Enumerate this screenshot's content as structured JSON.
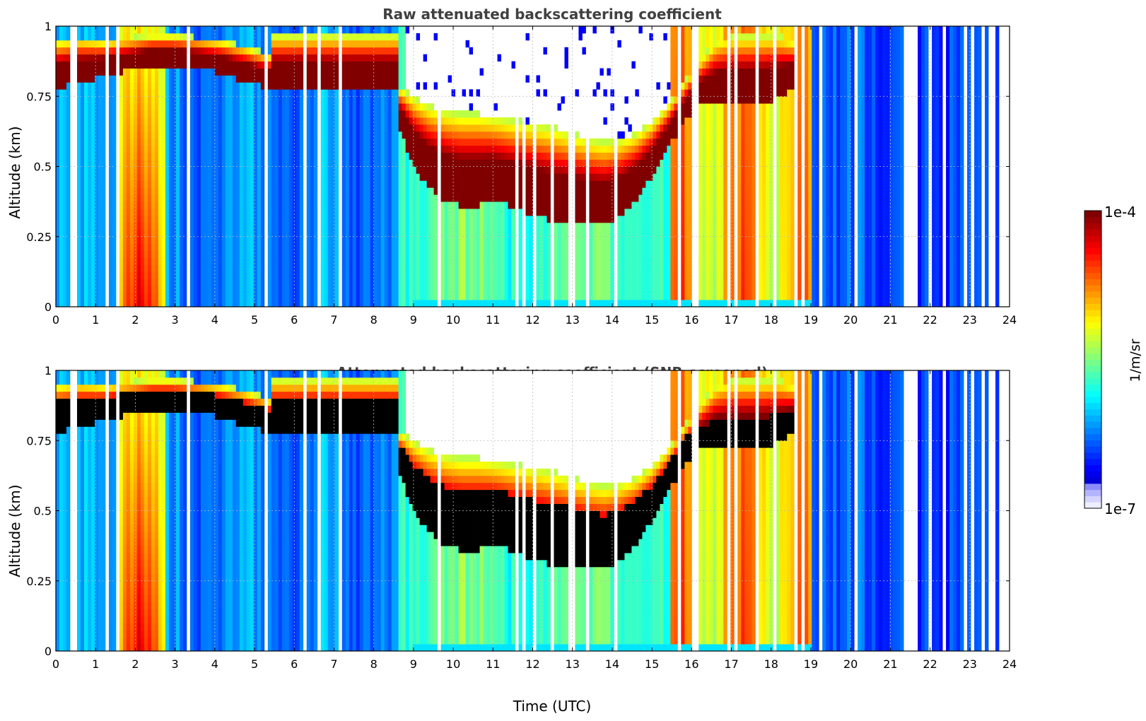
{
  "chart_data": [
    {
      "type": "heatmap",
      "title": "Raw attenuated backscattering coefficient",
      "xlabel": "",
      "ylabel": "Altitude (km)",
      "xlim": [
        0,
        24
      ],
      "ylim": [
        0,
        1
      ],
      "xticks": [
        "0",
        "1",
        "2",
        "3",
        "4",
        "5",
        "6",
        "7",
        "8",
        "9",
        "10",
        "11",
        "12",
        "13",
        "14",
        "15",
        "16",
        "17",
        "18",
        "19",
        "20",
        "21",
        "22",
        "23",
        "24"
      ],
      "yticks": [
        "0",
        "0.25",
        "0.5",
        "0.75",
        "1"
      ],
      "grid": true,
      "screened": false,
      "cloud_top_km": [
        0.95,
        0.96,
        0.95,
        0.96,
        0.97,
        0.97,
        0.96,
        0.95,
        0.93,
        0.9,
        0.78,
        0.75,
        0.72,
        0.7,
        0.69,
        0.69,
        0.68,
        0.67,
        0.66,
        0.65,
        0.64,
        0.62,
        0.6,
        0.59,
        0.6,
        0.62,
        0.66,
        0.72,
        0.8,
        0.88,
        0.95,
        0.97,
        0.97,
        0.97,
        0.97,
        0.96,
        0.95,
        0.95
      ],
      "cloud_base_km": [
        0.78,
        0.8,
        0.82,
        0.84,
        0.86,
        0.86,
        0.85,
        0.83,
        0.8,
        0.78,
        0.62,
        0.5,
        0.42,
        0.38,
        0.36,
        0.36,
        0.38,
        0.36,
        0.34,
        0.32,
        0.3,
        0.3,
        0.3,
        0.29,
        0.32,
        0.38,
        0.46,
        0.56,
        0.66,
        0.72,
        0.72,
        0.72,
        0.72,
        0.72,
        0.74,
        0.76,
        0.78,
        0.8
      ],
      "cloud_time_h": [
        0,
        0.6,
        1.2,
        1.8,
        2.4,
        3,
        3.6,
        4.2,
        4.8,
        5.4,
        8.7,
        9,
        9.4,
        9.8,
        10.2,
        10.6,
        11,
        11.4,
        11.8,
        12.2,
        12.6,
        13,
        13.4,
        13.8,
        14.2,
        14.6,
        15,
        15.4,
        15.8,
        16.2,
        16.6,
        17,
        17.4,
        17.8,
        18.2,
        18.4,
        18.6,
        18.7
      ]
    },
    {
      "type": "heatmap",
      "title": "Attenuated backscattering coefficient (SNR-screened)",
      "xlabel": "Time (UTC)",
      "ylabel": "Altitude (km)",
      "xlim": [
        0,
        24
      ],
      "ylim": [
        0,
        1
      ],
      "xticks": [
        "0",
        "1",
        "2",
        "3",
        "4",
        "5",
        "6",
        "7",
        "8",
        "9",
        "10",
        "11",
        "12",
        "13",
        "14",
        "15",
        "16",
        "17",
        "18",
        "19",
        "20",
        "21",
        "22",
        "23",
        "24"
      ],
      "yticks": [
        "0",
        "0.25",
        "0.5",
        "0.75",
        "1"
      ],
      "grid": true,
      "screened": true
    }
  ],
  "colorbar": {
    "label": "1/m/sr",
    "max_label": "1e-4",
    "min_label": "1e-7",
    "min_value": 1e-07,
    "max_value": 0.0001,
    "scale": "log",
    "colormap": "jet"
  }
}
